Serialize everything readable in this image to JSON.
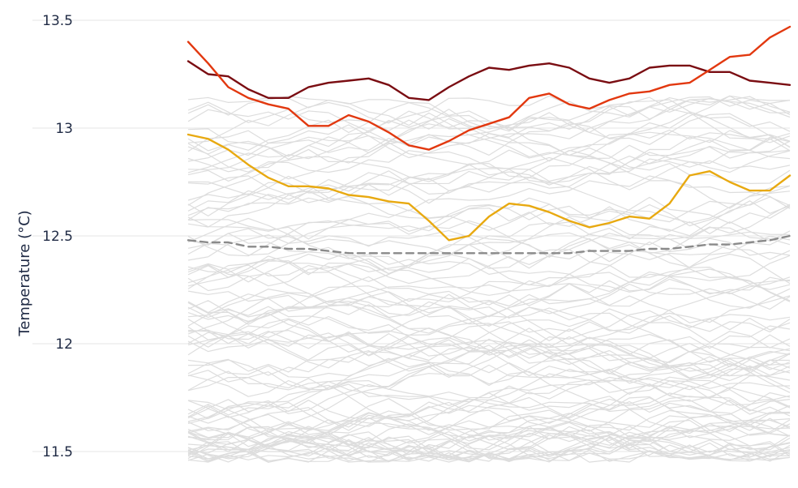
{
  "chart_data": {
    "type": "line",
    "title": "",
    "xlabel": "",
    "ylabel": "Temperature (°C)",
    "ylim": [
      11.5,
      13.5
    ],
    "yticks": [
      {
        "value": 13.5,
        "label": "13.5"
      },
      {
        "value": 13.0,
        "label": "13"
      },
      {
        "value": 12.5,
        "label": "12.5"
      },
      {
        "value": 12.0,
        "label": "12"
      },
      {
        "value": 11.5,
        "label": "11.5"
      }
    ],
    "x": [
      0,
      1,
      2,
      3,
      4,
      5,
      6,
      7,
      8,
      9,
      10,
      11,
      12,
      13,
      14,
      15,
      16,
      17,
      18,
      19,
      20,
      21,
      22,
      23,
      24,
      25,
      26,
      27,
      28,
      29,
      30
    ],
    "grid": true,
    "legend": "none",
    "background_series": {
      "count": 100,
      "color": "#dddddd",
      "range": [
        11.45,
        13.15
      ]
    },
    "series": [
      {
        "color": "#7a0d12",
        "style": "solid",
        "values": [
          13.31,
          13.25,
          13.24,
          13.18,
          13.14,
          13.14,
          13.19,
          13.21,
          13.22,
          13.23,
          13.2,
          13.14,
          13.13,
          13.19,
          13.24,
          13.28,
          13.27,
          13.29,
          13.3,
          13.28,
          13.23,
          13.21,
          13.23,
          13.28,
          13.29,
          13.29,
          13.26,
          13.26,
          13.22,
          13.21,
          13.2
        ]
      },
      {
        "color": "#e2380f",
        "style": "solid",
        "values": [
          13.4,
          13.3,
          13.19,
          13.14,
          13.11,
          13.09,
          13.01,
          13.01,
          13.06,
          13.03,
          12.98,
          12.92,
          12.9,
          12.94,
          12.99,
          13.02,
          13.05,
          13.14,
          13.16,
          13.11,
          13.09,
          13.13,
          13.16,
          13.17,
          13.2,
          13.21,
          13.27,
          13.33,
          13.34,
          13.42,
          13.47
        ]
      },
      {
        "color": "#e8a910",
        "style": "solid",
        "values": [
          12.97,
          12.95,
          12.9,
          12.83,
          12.77,
          12.73,
          12.73,
          12.72,
          12.69,
          12.68,
          12.66,
          12.65,
          12.57,
          12.48,
          12.5,
          12.59,
          12.65,
          12.64,
          12.61,
          12.57,
          12.54,
          12.56,
          12.59,
          12.58,
          12.65,
          12.78,
          12.8,
          12.75,
          12.71,
          12.71,
          12.78
        ]
      },
      {
        "color": "#8a8a8a",
        "style": "dashed",
        "values": [
          12.48,
          12.47,
          12.47,
          12.45,
          12.45,
          12.44,
          12.44,
          12.43,
          12.42,
          12.42,
          12.42,
          12.42,
          12.42,
          12.42,
          12.42,
          12.42,
          12.42,
          12.42,
          12.42,
          12.42,
          12.43,
          12.43,
          12.43,
          12.44,
          12.44,
          12.45,
          12.46,
          12.46,
          12.47,
          12.48,
          12.5
        ]
      }
    ]
  }
}
